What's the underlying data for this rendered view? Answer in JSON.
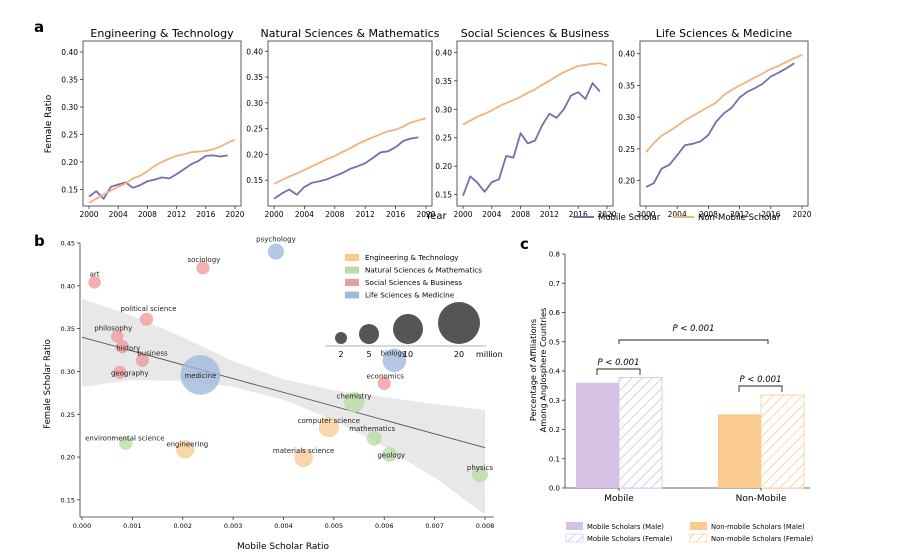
{
  "chart_data": [
    {
      "panel": "a",
      "type": "line",
      "ylabel": "Female Ratio",
      "xlabel": "Year",
      "x_ticks": [
        "2000",
        "2004",
        "2008",
        "2012",
        "2016",
        "2020"
      ],
      "xlim": [
        2000,
        2020
      ],
      "legend": [
        "Mobile Scholar",
        "Non-Mobile Scholar"
      ],
      "colors": {
        "mobile": "#7B6BAA",
        "nonmobile": "#F2B27E"
      },
      "subplots": [
        {
          "title": "Engineering & Technology",
          "ylim": [
            0.12,
            0.42
          ],
          "y_ticks": [
            "0.15",
            "0.20",
            "0.25",
            "0.30",
            "0.35",
            "0.40"
          ],
          "series": [
            {
              "name": "Mobile Scholar",
              "x": [
                2000,
                2001,
                2002,
                2003,
                2004,
                2005,
                2006,
                2007,
                2008,
                2009,
                2010,
                2011,
                2012,
                2013,
                2014,
                2015,
                2016,
                2017,
                2018,
                2019
              ],
              "values": [
                0.137,
                0.147,
                0.133,
                0.155,
                0.159,
                0.163,
                0.153,
                0.158,
                0.165,
                0.168,
                0.172,
                0.17,
                0.178,
                0.187,
                0.196,
                0.202,
                0.211,
                0.212,
                0.21,
                0.212
              ]
            },
            {
              "name": "Non-Mobile Scholar",
              "x": [
                2000,
                2001,
                2002,
                2003,
                2004,
                2005,
                2006,
                2007,
                2008,
                2009,
                2010,
                2011,
                2012,
                2013,
                2014,
                2015,
                2016,
                2017,
                2018,
                2019,
                2020
              ],
              "values": [
                0.126,
                0.133,
                0.141,
                0.148,
                0.155,
                0.161,
                0.17,
                0.175,
                0.183,
                0.193,
                0.2,
                0.206,
                0.211,
                0.214,
                0.218,
                0.219,
                0.22,
                0.223,
                0.228,
                0.235,
                0.241
              ]
            }
          ]
        },
        {
          "title": "Natural Sciences & Mathematics",
          "ylim": [
            0.1,
            0.42
          ],
          "y_ticks": [
            "0.15",
            "0.20",
            "0.25",
            "0.30",
            "0.35",
            "0.40"
          ],
          "series": [
            {
              "name": "Mobile Scholar",
              "x": [
                2000,
                2001,
                2002,
                2003,
                2004,
                2005,
                2006,
                2007,
                2008,
                2009,
                2010,
                2011,
                2012,
                2013,
                2014,
                2015,
                2016,
                2017,
                2018,
                2019
              ],
              "values": [
                0.114,
                0.124,
                0.132,
                0.122,
                0.137,
                0.145,
                0.148,
                0.152,
                0.158,
                0.164,
                0.172,
                0.177,
                0.183,
                0.193,
                0.204,
                0.206,
                0.214,
                0.226,
                0.231,
                0.233
              ]
            },
            {
              "name": "Non-Mobile Scholar",
              "x": [
                2000,
                2001,
                2002,
                2003,
                2004,
                2005,
                2006,
                2007,
                2008,
                2009,
                2010,
                2011,
                2012,
                2013,
                2014,
                2015,
                2016,
                2017,
                2018,
                2019,
                2020
              ],
              "values": [
                0.143,
                0.15,
                0.157,
                0.163,
                0.17,
                0.177,
                0.184,
                0.191,
                0.197,
                0.205,
                0.212,
                0.22,
                0.227,
                0.233,
                0.239,
                0.245,
                0.248,
                0.254,
                0.262,
                0.266,
                0.27
              ]
            }
          ]
        },
        {
          "title": "Social Sciences & Business",
          "ylim": [
            0.13,
            0.42
          ],
          "y_ticks": [
            "0.15",
            "0.20",
            "0.25",
            "0.30",
            "0.35",
            "0.40"
          ],
          "series": [
            {
              "name": "Mobile Scholar",
              "x": [
                2000,
                2001,
                2002,
                2003,
                2004,
                2005,
                2006,
                2007,
                2008,
                2009,
                2010,
                2011,
                2012,
                2013,
                2014,
                2015,
                2016,
                2017,
                2018,
                2019
              ],
              "values": [
                0.148,
                0.182,
                0.171,
                0.155,
                0.172,
                0.177,
                0.218,
                0.215,
                0.258,
                0.24,
                0.245,
                0.272,
                0.292,
                0.285,
                0.3,
                0.324,
                0.33,
                0.318,
                0.346,
                0.331
              ]
            },
            {
              "name": "Non-Mobile Scholar",
              "x": [
                2000,
                2001,
                2002,
                2003,
                2004,
                2005,
                2006,
                2007,
                2008,
                2009,
                2010,
                2011,
                2012,
                2013,
                2014,
                2015,
                2016,
                2017,
                2018,
                2019,
                2020
              ],
              "values": [
                0.273,
                0.28,
                0.287,
                0.292,
                0.298,
                0.305,
                0.311,
                0.316,
                0.322,
                0.329,
                0.335,
                0.343,
                0.35,
                0.358,
                0.365,
                0.371,
                0.376,
                0.378,
                0.38,
                0.381,
                0.377
              ]
            }
          ]
        },
        {
          "title": "Life Sciences & Medicine",
          "ylim": [
            0.16,
            0.42
          ],
          "y_ticks": [
            "0.20",
            "0.25",
            "0.30",
            "0.35",
            "0.40"
          ],
          "series": [
            {
              "name": "Mobile Scholar",
              "x": [
                2000,
                2001,
                2002,
                2003,
                2004,
                2005,
                2006,
                2007,
                2008,
                2009,
                2010,
                2011,
                2012,
                2013,
                2014,
                2015,
                2016,
                2017,
                2018,
                2019
              ],
              "values": [
                0.19,
                0.196,
                0.219,
                0.225,
                0.24,
                0.256,
                0.258,
                0.262,
                0.272,
                0.293,
                0.306,
                0.315,
                0.331,
                0.34,
                0.346,
                0.353,
                0.364,
                0.37,
                0.377,
                0.385
              ]
            },
            {
              "name": "Non-Mobile Scholar",
              "x": [
                2000,
                2001,
                2002,
                2003,
                2004,
                2005,
                2006,
                2007,
                2008,
                2009,
                2010,
                2011,
                2012,
                2013,
                2014,
                2015,
                2016,
                2017,
                2018,
                2019,
                2020
              ],
              "values": [
                0.245,
                0.259,
                0.271,
                0.278,
                0.286,
                0.295,
                0.302,
                0.309,
                0.316,
                0.323,
                0.335,
                0.343,
                0.35,
                0.356,
                0.363,
                0.369,
                0.376,
                0.381,
                0.387,
                0.393,
                0.398
              ]
            }
          ]
        }
      ]
    },
    {
      "panel": "b",
      "type": "scatter",
      "xlabel": "Mobile Scholar Ratio",
      "ylabel": "Female Scholar Ratio",
      "xlim": [
        0.0,
        0.008
      ],
      "ylim": [
        0.13,
        0.45
      ],
      "x_ticks": [
        "0.000",
        "0.001",
        "0.002",
        "0.003",
        "0.004",
        "0.005",
        "0.006",
        "0.007",
        "0.008"
      ],
      "y_ticks": [
        "0.15",
        "0.20",
        "0.25",
        "0.30",
        "0.35",
        "0.40",
        "0.45"
      ],
      "legend": [
        "Engineering & Technology",
        "Natural Sciences & Mathematics",
        "Social Sciences & Business",
        "Life Sciences & Medicine"
      ],
      "colors": {
        "Engineering & Technology": "#F9CB92",
        "Natural Sciences & Mathematics": "#B7DDA5",
        "Social Sciences & Business": "#EE9A9A",
        "Life Sciences & Medicine": "#9DB8DC"
      },
      "size_legend": {
        "values": [
          "2",
          "5",
          "10",
          "20"
        ],
        "unit": "million"
      },
      "trend_line": {
        "x": [
          0.0,
          0.008
        ],
        "y": [
          0.34,
          0.211
        ]
      },
      "points": [
        {
          "label": "psychology",
          "field": "Life Sciences & Medicine",
          "x": 0.00385,
          "y": 0.44,
          "size": 2
        },
        {
          "label": "art",
          "field": "Social Sciences & Business",
          "x": 0.00025,
          "y": 0.404,
          "size": 0.8
        },
        {
          "label": "sociology",
          "field": "Social Sciences & Business",
          "x": 0.0024,
          "y": 0.421,
          "size": 1
        },
        {
          "label": "political science",
          "field": "Social Sciences & Business",
          "x": 0.00128,
          "y": 0.361,
          "size": 1
        },
        {
          "label": "philosophy",
          "field": "Social Sciences & Business",
          "x": 0.0007,
          "y": 0.341,
          "size": 0.8
        },
        {
          "label": "history",
          "field": "Social Sciences & Business",
          "x": 0.0008,
          "y": 0.329,
          "size": 1
        },
        {
          "label": "business",
          "field": "Social Sciences & Business",
          "x": 0.0012,
          "y": 0.313,
          "size": 1
        },
        {
          "label": "geography",
          "field": "Social Sciences & Business",
          "x": 0.00075,
          "y": 0.299,
          "size": 1
        },
        {
          "label": "medicine",
          "field": "Life Sciences & Medicine",
          "x": 0.00235,
          "y": 0.296,
          "size": 22
        },
        {
          "label": "biology",
          "field": "Life Sciences & Medicine",
          "x": 0.0062,
          "y": 0.313,
          "size": 6
        },
        {
          "label": "economics",
          "field": "Social Sciences & Business",
          "x": 0.006,
          "y": 0.286,
          "size": 1
        },
        {
          "label": "chemistry",
          "field": "Natural Sciences & Mathematics",
          "x": 0.0054,
          "y": 0.264,
          "size": 4
        },
        {
          "label": "computer science",
          "field": "Engineering & Technology",
          "x": 0.0049,
          "y": 0.235,
          "size": 4
        },
        {
          "label": "mathematics",
          "field": "Natural Sciences & Mathematics",
          "x": 0.0058,
          "y": 0.222,
          "size": 1.5
        },
        {
          "label": "environmental science",
          "field": "Natural Sciences & Mathematics",
          "x": 0.00087,
          "y": 0.216,
          "size": 1
        },
        {
          "label": "engineering",
          "field": "Engineering & Technology",
          "x": 0.00205,
          "y": 0.209,
          "size": 3
        },
        {
          "label": "materials science",
          "field": "Engineering & Technology",
          "x": 0.0044,
          "y": 0.199,
          "size": 3
        },
        {
          "label": "geology",
          "field": "Natural Sciences & Mathematics",
          "x": 0.0061,
          "y": 0.203,
          "size": 1.5
        },
        {
          "label": "physics",
          "field": "Natural Sciences & Mathematics",
          "x": 0.0079,
          "y": 0.18,
          "size": 2
        }
      ]
    },
    {
      "panel": "c",
      "type": "bar",
      "ylabel": "Percentage of Affiliations Among Anglosphere Countries",
      "categories": [
        "Mobile",
        "Non-Mobile"
      ],
      "ylim": [
        0.0,
        0.8
      ],
      "y_ticks": [
        "0.0",
        "0.1",
        "0.2",
        "0.3",
        "0.4",
        "0.5",
        "0.6",
        "0.7",
        "0.8"
      ],
      "series": [
        {
          "name": "Mobile Scholars (Male)",
          "category": "Mobile",
          "value": 0.36,
          "color": "#D5C2E5",
          "hatched": false
        },
        {
          "name": "Mobile Scholars (Female)",
          "category": "Mobile",
          "value": 0.378,
          "color": "#D5C2E5",
          "hatched": true
        },
        {
          "name": "Non-mobile Scholars (Male)",
          "category": "Non-Mobile",
          "value": 0.252,
          "color": "#F9CB92",
          "hatched": false
        },
        {
          "name": "Non-mobile Scholars (Female)",
          "category": "Non-Mobile",
          "value": 0.318,
          "color": "#F9CB92",
          "hatched": true
        }
      ],
      "annotations": [
        {
          "text": "P < 0.001",
          "between": "Mobile pair"
        },
        {
          "text": "P < 0.001",
          "between": "Non-Mobile pair"
        },
        {
          "text": "P < 0.001",
          "between": "Mobile vs Non-Mobile"
        }
      ]
    }
  ],
  "labels": {
    "a": "a",
    "b": "b",
    "c": "c"
  }
}
